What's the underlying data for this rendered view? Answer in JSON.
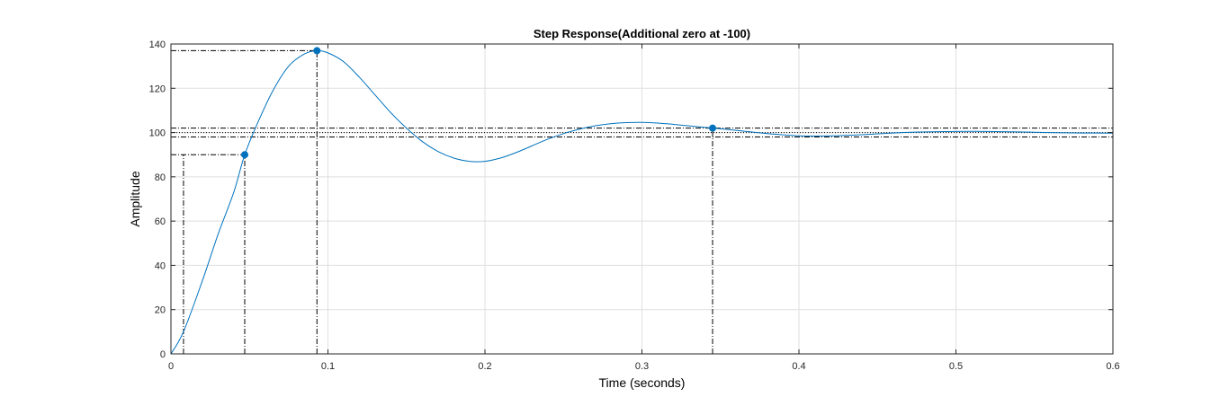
{
  "chart_data": {
    "type": "line",
    "title": "Step Response(Additional zero at -100)",
    "xlabel": "Time (seconds)",
    "ylabel": "Amplitude",
    "xlim": [
      0,
      0.6
    ],
    "ylim": [
      0,
      140
    ],
    "xticks": [
      "0",
      "0.1",
      "0.2",
      "0.3",
      "0.4",
      "0.5",
      "0.6"
    ],
    "xtick_values": [
      0,
      0.1,
      0.2,
      0.3,
      0.4,
      0.5,
      0.6
    ],
    "yticks": [
      "0",
      "20",
      "40",
      "60",
      "80",
      "100",
      "120",
      "140"
    ],
    "ytick_values": [
      0,
      20,
      40,
      60,
      80,
      100,
      120,
      140
    ],
    "grid": true,
    "series": [
      {
        "color": "#0072BD",
        "x": [
          0,
          0.008,
          0.02,
          0.03,
          0.04,
          0.047,
          0.055,
          0.065,
          0.075,
          0.085,
          0.093,
          0.1,
          0.11,
          0.12,
          0.13,
          0.14,
          0.15,
          0.16,
          0.17,
          0.18,
          0.19,
          0.2,
          0.21,
          0.22,
          0.23,
          0.24,
          0.25,
          0.26,
          0.27,
          0.28,
          0.29,
          0.3,
          0.31,
          0.32,
          0.33,
          0.345,
          0.36,
          0.38,
          0.4,
          0.42,
          0.44,
          0.46,
          0.48,
          0.5,
          0.52,
          0.54,
          0.56,
          0.58,
          0.6
        ],
        "y": [
          0,
          10,
          33,
          54,
          73,
          90,
          104,
          119,
          130,
          135.5,
          137,
          136,
          132,
          125,
          117,
          109,
          102,
          96,
          91.5,
          88.5,
          87,
          87,
          88.5,
          91,
          94,
          97,
          99.5,
          101.5,
          103,
          104,
          104.5,
          104.6,
          104.3,
          103.7,
          103,
          102,
          101,
          99.5,
          98.5,
          98.5,
          99,
          99.8,
          100.3,
          100.5,
          100.5,
          100.3,
          100,
          99.8,
          99.7
        ]
      }
    ],
    "markers": [
      {
        "label": "rise-time",
        "x": 0.047,
        "y": 90
      },
      {
        "label": "peak",
        "x": 0.093,
        "y": 137
      },
      {
        "label": "settling-time",
        "x": 0.345,
        "y": 102
      }
    ],
    "reference_lines": {
      "steady_state": 100,
      "settling_band": [
        98,
        102
      ],
      "rise_start_time": 0.008
    }
  }
}
